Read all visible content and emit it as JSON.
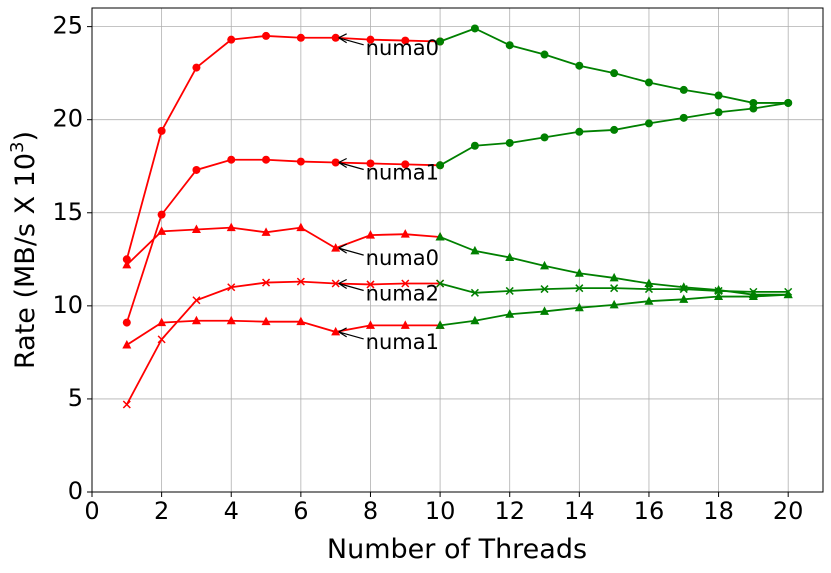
{
  "chart_data": {
    "type": "line",
    "xlabel": "Number of Threads",
    "ylabel": "Rate (MB/s X 10",
    "ylabel_sup": "3",
    "ylabel_end": ")",
    "xlim": [
      0,
      21
    ],
    "ylim": [
      0,
      26
    ],
    "xticks": [
      0,
      2,
      4,
      6,
      8,
      10,
      12,
      14,
      16,
      18,
      20
    ],
    "yticks": [
      0,
      5,
      10,
      15,
      20,
      25
    ],
    "grid": true,
    "series": [
      {
        "color": "#ff0000",
        "marker": "circle",
        "x": [
          1,
          2,
          3,
          4,
          5,
          6,
          7,
          8,
          9,
          10
        ],
        "values": [
          12.5,
          19.4,
          22.8,
          24.3,
          24.5,
          24.4,
          24.4,
          24.3,
          24.25,
          24.2
        ]
      },
      {
        "color": "#008000",
        "marker": "circle",
        "x": [
          10,
          11,
          12,
          13,
          14,
          15,
          16,
          17,
          18,
          19,
          20
        ],
        "values": [
          24.2,
          24.9,
          24.0,
          23.5,
          22.9,
          22.5,
          22.0,
          21.6,
          21.3,
          20.9,
          20.9
        ]
      },
      {
        "color": "#ff0000",
        "marker": "circle",
        "x": [
          1,
          2,
          3,
          4,
          5,
          6,
          7,
          8,
          9,
          10
        ],
        "values": [
          9.1,
          14.9,
          17.3,
          17.85,
          17.85,
          17.75,
          17.7,
          17.65,
          17.6,
          17.55
        ]
      },
      {
        "color": "#008000",
        "marker": "circle",
        "x": [
          10,
          11,
          12,
          13,
          14,
          15,
          16,
          17,
          18,
          19,
          20
        ],
        "values": [
          17.55,
          18.6,
          18.75,
          19.05,
          19.35,
          19.45,
          19.8,
          20.1,
          20.4,
          20.6,
          20.9
        ]
      },
      {
        "color": "#ff0000",
        "marker": "triangle",
        "x": [
          1,
          2,
          3,
          4,
          5,
          6,
          7,
          8,
          9,
          10
        ],
        "values": [
          12.2,
          14.0,
          14.1,
          14.2,
          13.95,
          14.2,
          13.1,
          13.8,
          13.85,
          13.7
        ]
      },
      {
        "color": "#008000",
        "marker": "triangle",
        "x": [
          10,
          11,
          12,
          13,
          14,
          15,
          16,
          17,
          18,
          19,
          20
        ],
        "values": [
          13.7,
          12.95,
          12.6,
          12.15,
          11.75,
          11.5,
          11.2,
          11.0,
          10.85,
          10.6,
          10.6
        ]
      },
      {
        "color": "#ff0000",
        "marker": "x",
        "x": [
          1,
          2,
          3,
          4,
          5,
          6,
          7,
          8,
          9,
          10
        ],
        "values": [
          4.7,
          8.2,
          10.3,
          11.0,
          11.25,
          11.3,
          11.2,
          11.15,
          11.2,
          11.2
        ]
      },
      {
        "color": "#008000",
        "marker": "x",
        "x": [
          10,
          11,
          12,
          13,
          14,
          15,
          16,
          17,
          18,
          19,
          20
        ],
        "values": [
          11.2,
          10.7,
          10.8,
          10.9,
          10.95,
          10.95,
          10.9,
          10.9,
          10.8,
          10.75,
          10.75
        ]
      },
      {
        "color": "#ff0000",
        "marker": "triangle",
        "x": [
          1,
          2,
          3,
          4,
          5,
          6,
          7,
          8,
          9,
          10
        ],
        "values": [
          7.9,
          9.1,
          9.2,
          9.2,
          9.15,
          9.15,
          8.6,
          8.95,
          8.95,
          8.95
        ]
      },
      {
        "color": "#008000",
        "marker": "triangle",
        "x": [
          10,
          11,
          12,
          13,
          14,
          15,
          16,
          17,
          18,
          19,
          20
        ],
        "values": [
          8.95,
          9.2,
          9.55,
          9.7,
          9.9,
          10.05,
          10.25,
          10.35,
          10.5,
          10.5,
          10.6
        ]
      }
    ],
    "annotations": [
      {
        "text": "numa0",
        "x": 7,
        "y": 24.4
      },
      {
        "text": "numa1",
        "x": 7,
        "y": 17.7
      },
      {
        "text": "numa0",
        "x": 7,
        "y": 13.1
      },
      {
        "text": "numa2",
        "x": 7,
        "y": 11.2
      },
      {
        "text": "numa1",
        "x": 7,
        "y": 8.6
      }
    ]
  }
}
